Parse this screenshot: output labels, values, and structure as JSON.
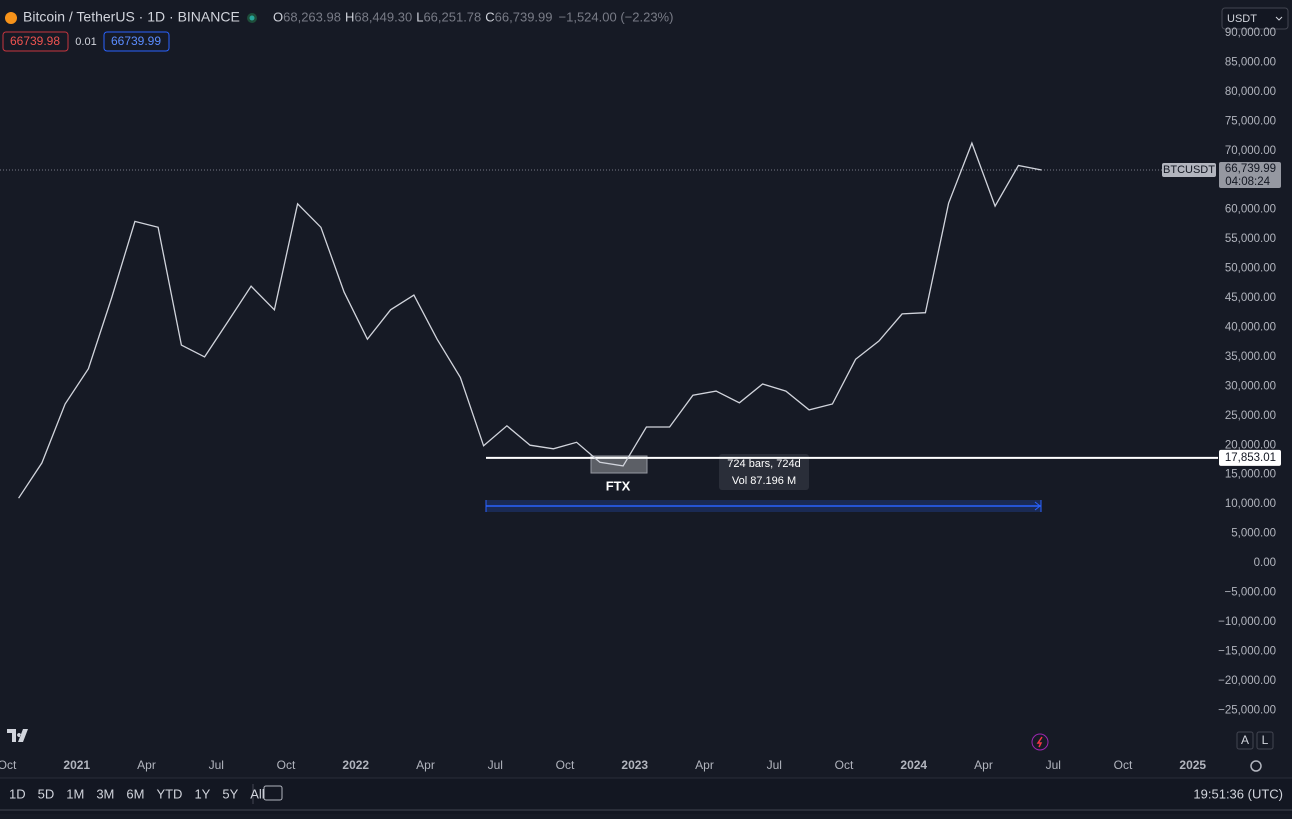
{
  "chart_data": {
    "type": "line",
    "title": "Bitcoin / TetherUS · 1D · BINANCE",
    "x": [
      "2020-10",
      "2020-11",
      "2020-12",
      "2021-01",
      "2021-02",
      "2021-03",
      "2021-04",
      "2021-05",
      "2021-06",
      "2021-07",
      "2021-08",
      "2021-09",
      "2021-10",
      "2021-11",
      "2021-12",
      "2022-01",
      "2022-02",
      "2022-03",
      "2022-04",
      "2022-05",
      "2022-06",
      "2022-07",
      "2022-08",
      "2022-09",
      "2022-10",
      "2022-11",
      "2022-12",
      "2023-01",
      "2023-02",
      "2023-03",
      "2023-04",
      "2023-05",
      "2023-06",
      "2023-07",
      "2023-08",
      "2023-09",
      "2023-10",
      "2023-11",
      "2023-12",
      "2024-01",
      "2024-02",
      "2024-03",
      "2024-04",
      "2024-05",
      "2024-06"
    ],
    "series": [
      {
        "name": "BTCUSDT",
        "color": "#d1d4dc",
        "values": [
          11000,
          17000,
          27000,
          33000,
          45000,
          58000,
          57000,
          37000,
          35000,
          41000,
          47000,
          43000,
          61000,
          57000,
          46000,
          38000,
          43000,
          45500,
          38000,
          31500,
          19900,
          23300,
          20000,
          19400,
          20500,
          17100,
          16500,
          23100,
          23100,
          28500,
          29200,
          27200,
          30400,
          29200,
          26000,
          27000,
          34600,
          37700,
          42300,
          42500,
          61100,
          71300,
          60600,
          67500,
          66739.99
        ]
      }
    ],
    "xlim": [
      "2020-10",
      "2025-02"
    ],
    "xticks": [
      {
        "value": "2020-10",
        "label": "Oct"
      },
      {
        "value": "2021-01",
        "label": "2021"
      },
      {
        "value": "2021-04",
        "label": "Apr"
      },
      {
        "value": "2021-07",
        "label": "Jul"
      },
      {
        "value": "2021-10",
        "label": "Oct"
      },
      {
        "value": "2022-01",
        "label": "2022"
      },
      {
        "value": "2022-04",
        "label": "Apr"
      },
      {
        "value": "2022-07",
        "label": "Jul"
      },
      {
        "value": "2022-10",
        "label": "Oct"
      },
      {
        "value": "2023-01",
        "label": "2023"
      },
      {
        "value": "2023-04",
        "label": "Apr"
      },
      {
        "value": "2023-07",
        "label": "Jul"
      },
      {
        "value": "2023-10",
        "label": "Oct"
      },
      {
        "value": "2024-01",
        "label": "2024"
      },
      {
        "value": "2024-04",
        "label": "Apr"
      },
      {
        "value": "2024-07",
        "label": "Jul"
      },
      {
        "value": "2024-10",
        "label": "Oct"
      },
      {
        "value": "2025-01",
        "label": "2025"
      }
    ],
    "ylim": [
      -36500,
      95600
    ],
    "yticks": [
      {
        "value": 90000,
        "label": "90,000.00"
      },
      {
        "value": 85000,
        "label": "85,000.00"
      },
      {
        "value": 80000,
        "label": "80,000.00"
      },
      {
        "value": 75000,
        "label": "75,000.00"
      },
      {
        "value": 70000,
        "label": "70,000.00"
      },
      {
        "value": 65000,
        "label": "65,000.00"
      },
      {
        "value": 60000,
        "label": "60,000.00"
      },
      {
        "value": 55000,
        "label": "55,000.00"
      },
      {
        "value": 50000,
        "label": "50,000.00"
      },
      {
        "value": 45000,
        "label": "45,000.00"
      },
      {
        "value": 40000,
        "label": "40,000.00"
      },
      {
        "value": 35000,
        "label": "35,000.00"
      },
      {
        "value": 30000,
        "label": "30,000.00"
      },
      {
        "value": 25000,
        "label": "25,000.00"
      },
      {
        "value": 20000,
        "label": "20,000.00"
      },
      {
        "value": 15000,
        "label": "15,000.00"
      },
      {
        "value": 10000,
        "label": "10,000.00"
      },
      {
        "value": 5000,
        "label": "5,000.00"
      },
      {
        "value": 0,
        "label": "0.00"
      },
      {
        "value": -5000,
        "label": "−5,000.00"
      },
      {
        "value": -10000,
        "label": "−10,000.00"
      },
      {
        "value": -15000,
        "label": "−15,000.00"
      },
      {
        "value": -20000,
        "label": "−20,000.00"
      },
      {
        "value": -25000,
        "label": "−25,000.00"
      }
    ],
    "grid": false,
    "last_price": {
      "value": 66739.99,
      "label": "66,739.99"
    },
    "countdown": "04:08:24",
    "hline": {
      "value": 17853.01,
      "label": "17,853.01"
    },
    "annotation": "FTX",
    "measure": {
      "bars": "724 bars, 724d",
      "volume": "Vol 87.196 M"
    }
  },
  "ui": {
    "ohlc": [
      {
        "k": "O",
        "v": "68,263.98"
      },
      {
        "k": "H",
        "v": "68,449.30"
      },
      {
        "k": "L",
        "v": "66,251.78"
      },
      {
        "k": "C",
        "v": "66,739.99"
      }
    ],
    "change": "−1,524.00 (−2.23%)",
    "bid": "66739.98",
    "spread": "0.01",
    "ask": "66739.99",
    "currency": "USDT",
    "timeframes": [
      "1D",
      "5D",
      "1M",
      "3M",
      "6M",
      "YTD",
      "1Y",
      "5Y",
      "All"
    ],
    "clock": "19:51:36 (UTC)",
    "scale_buttons": [
      "A",
      "L"
    ]
  }
}
